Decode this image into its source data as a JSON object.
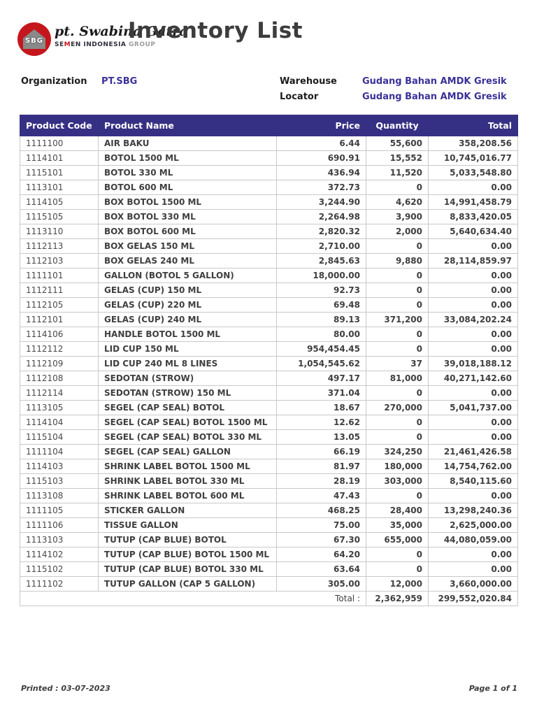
{
  "logo": {
    "badge_text": "SBG",
    "company_script": "pt. Swabina Gatra",
    "group_prefix": "SE",
    "group_m": "M",
    "group_suffix": "EN INDONESIA",
    "group_word": " GROUP"
  },
  "title": "Inventory List",
  "info": {
    "organization_label": "Organization",
    "organization_value": "PT.SBG",
    "warehouse_label": "Warehouse",
    "warehouse_value": "Gudang Bahan AMDK Gresik",
    "locator_label": "Locator",
    "locator_value": "Gudang Bahan AMDK Gresik"
  },
  "table": {
    "headers": [
      "Product Code",
      "Product Name",
      "Price",
      "Quantity",
      "Total"
    ],
    "rows": [
      [
        "1111100",
        "AIR BAKU",
        "6.44",
        "55,600",
        "358,208.56"
      ],
      [
        "1114101",
        "BOTOL 1500 ML",
        "690.91",
        "15,552",
        "10,745,016.77"
      ],
      [
        "1115101",
        "BOTOL 330 ML",
        "436.94",
        "11,520",
        "5,033,548.80"
      ],
      [
        "1113101",
        "BOTOL 600 ML",
        "372.73",
        "0",
        "0.00"
      ],
      [
        "1114105",
        "BOX BOTOL 1500 ML",
        "3,244.90",
        "4,620",
        "14,991,458.79"
      ],
      [
        "1115105",
        "BOX BOTOL 330 ML",
        "2,264.98",
        "3,900",
        "8,833,420.05"
      ],
      [
        "1113110",
        "BOX BOTOL 600 ML",
        "2,820.32",
        "2,000",
        "5,640,634.40"
      ],
      [
        "1112113",
        "BOX GELAS 150 ML",
        "2,710.00",
        "0",
        "0.00"
      ],
      [
        "1112103",
        "BOX GELAS 240 ML",
        "2,845.63",
        "9,880",
        "28,114,859.97"
      ],
      [
        "1111101",
        "GALLON (BOTOL 5 GALLON)",
        "18,000.00",
        "0",
        "0.00"
      ],
      [
        "1112111",
        "GELAS (CUP) 150 ML",
        "92.73",
        "0",
        "0.00"
      ],
      [
        "1112105",
        "GELAS (CUP) 220 ML",
        "69.48",
        "0",
        "0.00"
      ],
      [
        "1112101",
        "GELAS (CUP) 240 ML",
        "89.13",
        "371,200",
        "33,084,202.24"
      ],
      [
        "1114106",
        "HANDLE BOTOL 1500 ML",
        "80.00",
        "0",
        "0.00"
      ],
      [
        "1112112",
        "LID CUP 150 ML",
        "954,454.45",
        "0",
        "0.00"
      ],
      [
        "1112109",
        "LID CUP 240 ML 8 LINES",
        "1,054,545.62",
        "37",
        "39,018,188.12"
      ],
      [
        "1112108",
        "SEDOTAN (STROW)",
        "497.17",
        "81,000",
        "40,271,142.60"
      ],
      [
        "1112114",
        "SEDOTAN (STROW) 150 ML",
        "371.04",
        "0",
        "0.00"
      ],
      [
        "1113105",
        "SEGEL (CAP SEAL) BOTOL",
        "18.67",
        "270,000",
        "5,041,737.00"
      ],
      [
        "1114104",
        "SEGEL (CAP SEAL) BOTOL 1500 ML",
        "12.62",
        "0",
        "0.00"
      ],
      [
        "1115104",
        "SEGEL (CAP SEAL) BOTOL 330 ML",
        "13.05",
        "0",
        "0.00"
      ],
      [
        "1111104",
        "SEGEL (CAP SEAL) GALLON",
        "66.19",
        "324,250",
        "21,461,426.58"
      ],
      [
        "1114103",
        "SHRINK LABEL BOTOL 1500 ML",
        "81.97",
        "180,000",
        "14,754,762.00"
      ],
      [
        "1115103",
        "SHRINK LABEL BOTOL 330 ML",
        "28.19",
        "303,000",
        "8,540,115.60"
      ],
      [
        "1113108",
        "SHRINK LABEL BOTOL 600 ML",
        "47.43",
        "0",
        "0.00"
      ],
      [
        "1111105",
        "STICKER GALLON",
        "468.25",
        "28,400",
        "13,298,240.36"
      ],
      [
        "1111106",
        "TISSUE GALLON",
        "75.00",
        "35,000",
        "2,625,000.00"
      ],
      [
        "1113103",
        "TUTUP (CAP BLUE) BOTOL",
        "67.30",
        "655,000",
        "44,080,059.00"
      ],
      [
        "1114102",
        "TUTUP (CAP BLUE) BOTOL 1500 ML",
        "64.20",
        "0",
        "0.00"
      ],
      [
        "1115102",
        "TUTUP (CAP BLUE) BOTOL 330 ML",
        "63.64",
        "0",
        "0.00"
      ],
      [
        "1111102",
        "TUTUP GALLON (CAP 5 GALLON)",
        "305.00",
        "12,000",
        "3,660,000.00"
      ]
    ],
    "total_label": "Total :",
    "total_quantity": "2,362,959",
    "total_amount": "299,552,020.84"
  },
  "footer": {
    "printed": "Printed : 03-07-2023",
    "page": "Page 1 of 1"
  },
  "colors": {
    "table_header_bg": "#363084",
    "accent_text": "#3b3298",
    "logo_red": "#c4161c",
    "border": "#c9c9c9"
  }
}
